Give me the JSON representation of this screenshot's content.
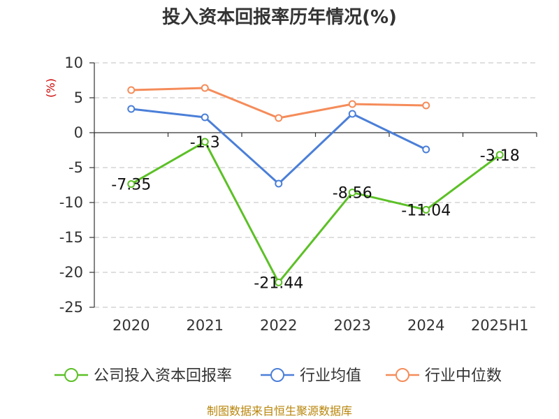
{
  "chart_data": {
    "type": "line",
    "title": "投入资本回报率历年情况(%)",
    "ylabel": "(%)",
    "categories": [
      "2020",
      "2021",
      "2022",
      "2023",
      "2024",
      "2025H1"
    ],
    "ylim": [
      -25,
      10
    ],
    "yticks": [
      10,
      5,
      0,
      -5,
      -10,
      -15,
      -20,
      -25
    ],
    "grid": true,
    "legend_position": "bottom",
    "series": [
      {
        "name": "公司投入资本回报率",
        "color": "#5cc026",
        "values": [
          -7.35,
          -1.3,
          -21.44,
          -8.56,
          -11.04,
          -3.18
        ],
        "labels": [
          "-7.35",
          "-1.3",
          "-21.44",
          "-8.56",
          "-11.04",
          "-3.18"
        ]
      },
      {
        "name": "行业均值",
        "color": "#4b7fd8",
        "values": [
          3.4,
          2.2,
          -7.3,
          2.7,
          -2.4,
          null
        ]
      },
      {
        "name": "行业中位数",
        "color": "#f58c5a",
        "values": [
          6.1,
          6.4,
          2.1,
          4.1,
          3.9,
          null
        ]
      }
    ]
  },
  "source": "制图数据来自恒生聚源数据库"
}
